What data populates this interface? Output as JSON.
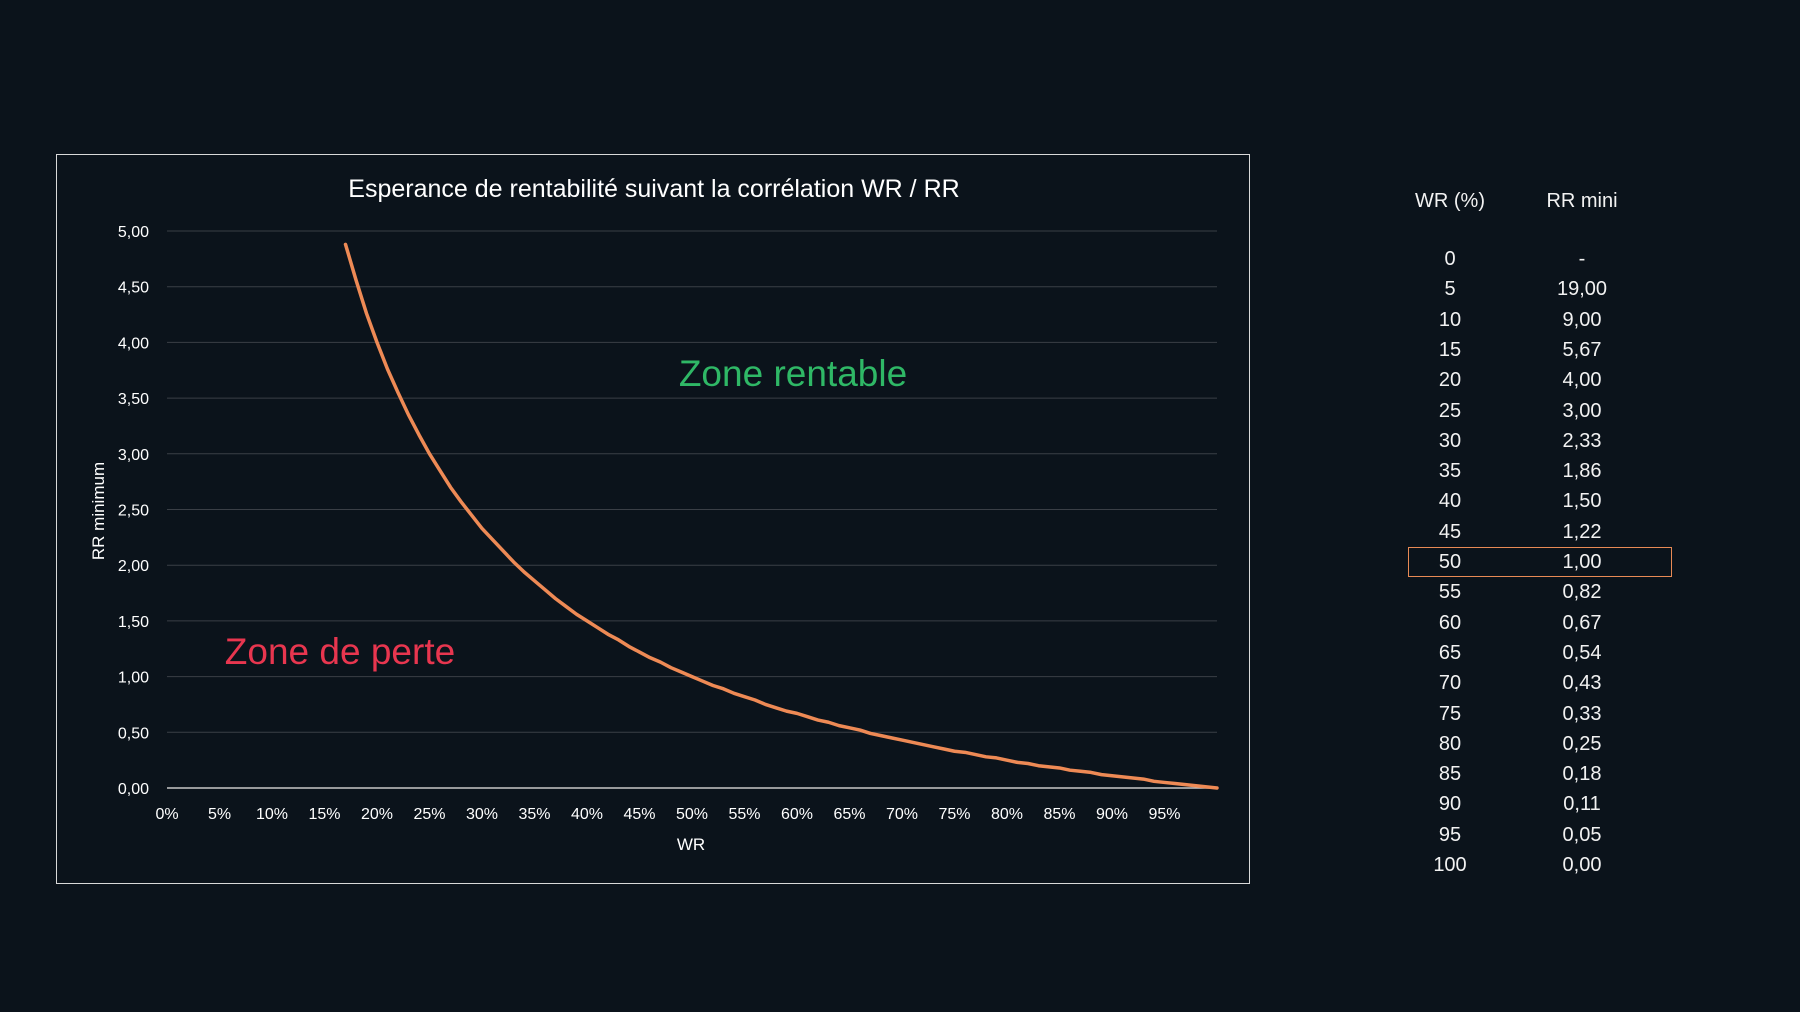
{
  "chart_data": {
    "type": "line",
    "title": "Esperance de rentabilité suivant la corrélation WR / RR",
    "xlabel": "WR",
    "ylabel": "RR minimum",
    "xlim": [
      0,
      100
    ],
    "ylim": [
      0,
      5
    ],
    "x_tick_labels": [
      "0%",
      "5%",
      "10%",
      "15%",
      "20%",
      "25%",
      "30%",
      "35%",
      "40%",
      "45%",
      "50%",
      "55%",
      "60%",
      "65%",
      "70%",
      "75%",
      "80%",
      "85%",
      "90%",
      "95%"
    ],
    "y_tick_labels": [
      "0,00",
      "0,50",
      "1,00",
      "1,50",
      "2,00",
      "2,50",
      "3,00",
      "3,50",
      "4,00",
      "4,50",
      "5,00"
    ],
    "grid": true,
    "line_color": "#ee8a55",
    "series": [
      {
        "x": [
          17,
          18,
          19,
          20,
          21,
          22,
          23,
          24,
          25,
          26,
          27,
          28,
          29,
          30,
          31,
          32,
          33,
          34,
          35,
          36,
          37,
          38,
          39,
          40,
          41,
          42,
          43,
          44,
          45,
          46,
          47,
          48,
          49,
          50,
          51,
          52,
          53,
          54,
          55,
          56,
          57,
          58,
          59,
          60,
          61,
          62,
          63,
          64,
          65,
          66,
          67,
          68,
          69,
          70,
          71,
          72,
          73,
          74,
          75,
          76,
          77,
          78,
          79,
          80,
          81,
          82,
          83,
          84,
          85,
          86,
          87,
          88,
          89,
          90,
          91,
          92,
          93,
          94,
          95,
          96,
          97,
          98,
          99,
          100
        ],
        "values": [
          4.88,
          4.56,
          4.26,
          4.0,
          3.76,
          3.55,
          3.35,
          3.17,
          3.0,
          2.85,
          2.7,
          2.57,
          2.45,
          2.33,
          2.23,
          2.13,
          2.03,
          1.94,
          1.86,
          1.78,
          1.7,
          1.63,
          1.56,
          1.5,
          1.44,
          1.38,
          1.33,
          1.27,
          1.22,
          1.17,
          1.13,
          1.08,
          1.04,
          1.0,
          0.96,
          0.92,
          0.89,
          0.85,
          0.82,
          0.79,
          0.75,
          0.72,
          0.69,
          0.67,
          0.64,
          0.61,
          0.59,
          0.56,
          0.54,
          0.52,
          0.49,
          0.47,
          0.45,
          0.43,
          0.41,
          0.39,
          0.37,
          0.35,
          0.33,
          0.32,
          0.3,
          0.28,
          0.27,
          0.25,
          0.23,
          0.22,
          0.2,
          0.19,
          0.18,
          0.16,
          0.15,
          0.14,
          0.12,
          0.11,
          0.1,
          0.09,
          0.08,
          0.06,
          0.05,
          0.04,
          0.03,
          0.02,
          0.01,
          0.0
        ]
      }
    ],
    "annotations": [
      {
        "text": "Zone rentable",
        "color": "#2fb866"
      },
      {
        "text": "Zone de perte",
        "color": "#e8364f"
      }
    ]
  },
  "table": {
    "headers": [
      "WR (%)",
      "RR mini"
    ],
    "highlight_color": "#e88a55",
    "highlight_row": 10,
    "rows": [
      [
        "0",
        "-"
      ],
      [
        "5",
        "19,00"
      ],
      [
        "10",
        "9,00"
      ],
      [
        "15",
        "5,67"
      ],
      [
        "20",
        "4,00"
      ],
      [
        "25",
        "3,00"
      ],
      [
        "30",
        "2,33"
      ],
      [
        "35",
        "1,86"
      ],
      [
        "40",
        "1,50"
      ],
      [
        "45",
        "1,22"
      ],
      [
        "50",
        "1,00"
      ],
      [
        "55",
        "0,82"
      ],
      [
        "60",
        "0,67"
      ],
      [
        "65",
        "0,54"
      ],
      [
        "70",
        "0,43"
      ],
      [
        "75",
        "0,33"
      ],
      [
        "80",
        "0,25"
      ],
      [
        "85",
        "0,18"
      ],
      [
        "90",
        "0,11"
      ],
      [
        "95",
        "0,05"
      ],
      [
        "100",
        "0,00"
      ]
    ]
  }
}
